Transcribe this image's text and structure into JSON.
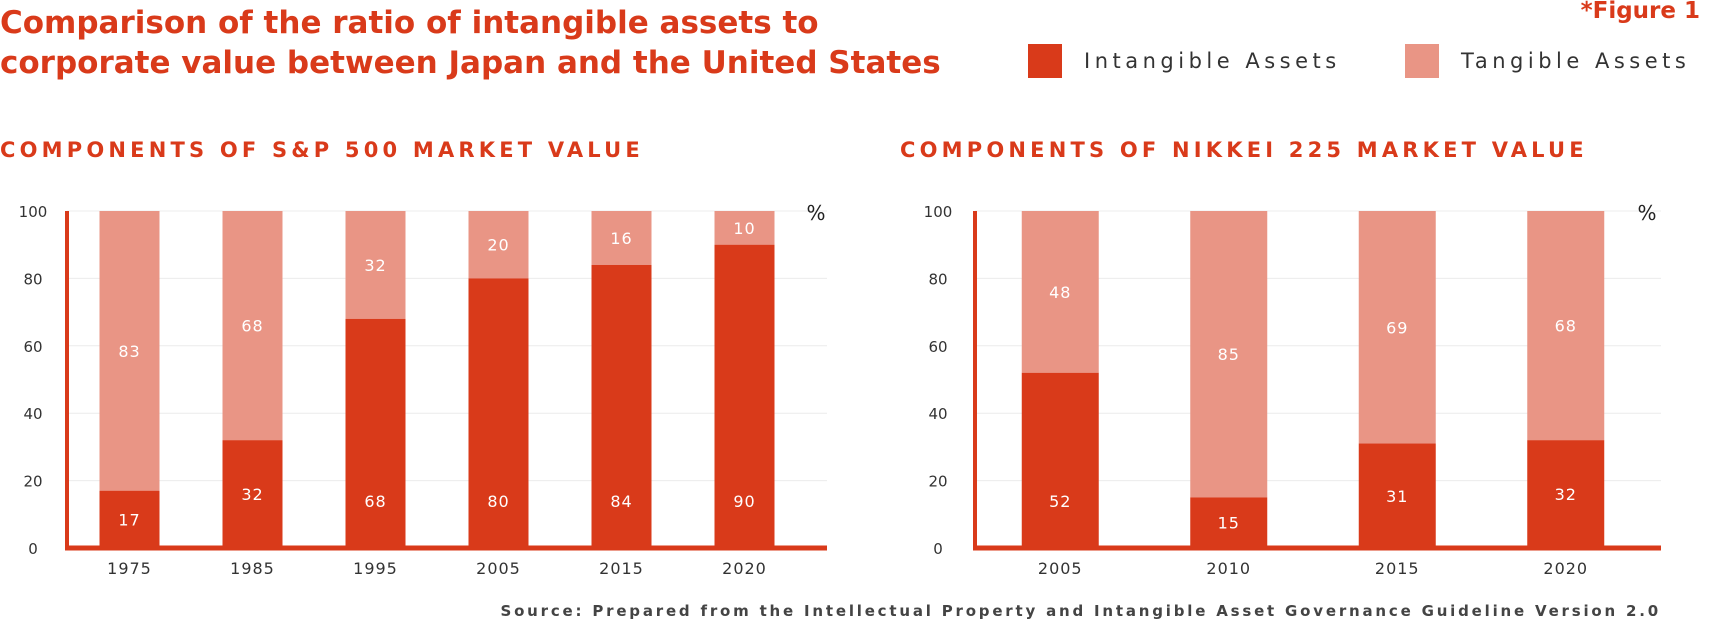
{
  "title_line1": "Comparison of the ratio of intangible assets to",
  "title_line2": "corporate value between Japan and the United States",
  "figure_label": "*Figure 1",
  "legend": {
    "intangible": "Intangible Assets",
    "tangible": "Tangible Assets"
  },
  "colors": {
    "intangible": "#d93a1a",
    "tangible": "#e99585",
    "accent": "#d93a1a"
  },
  "source": "Source: Prepared from the Intellectual Property and Intangible Asset Governance Guideline Version 2.0",
  "chart_data": [
    {
      "type": "bar",
      "stacked": true,
      "title": "COMPONENTS OF S&P 500 MARKET VALUE",
      "unit": "%",
      "categories": [
        "1975",
        "1985",
        "1995",
        "2005",
        "2015",
        "2020"
      ],
      "series": [
        {
          "name": "Intangible Assets",
          "values": [
            17,
            32,
            68,
            80,
            84,
            90
          ]
        },
        {
          "name": "Tangible Assets",
          "values": [
            83,
            68,
            32,
            20,
            16,
            10
          ]
        }
      ],
      "ylim": [
        0,
        100
      ],
      "yticks": [
        0,
        20,
        40,
        60,
        80,
        100
      ],
      "grid": true
    },
    {
      "type": "bar",
      "stacked": true,
      "title": "COMPONENTS OF NIKKEI 225 MARKET VALUE",
      "unit": "%",
      "categories": [
        "2005",
        "2010",
        "2015",
        "2020"
      ],
      "series": [
        {
          "name": "Intangible Assets",
          "values": [
            52,
            15,
            31,
            32
          ]
        },
        {
          "name": "Tangible Assets",
          "values": [
            48,
            85,
            69,
            68
          ]
        }
      ],
      "ylim": [
        0,
        100
      ],
      "yticks": [
        0,
        20,
        40,
        60,
        80,
        100
      ],
      "grid": true
    }
  ]
}
